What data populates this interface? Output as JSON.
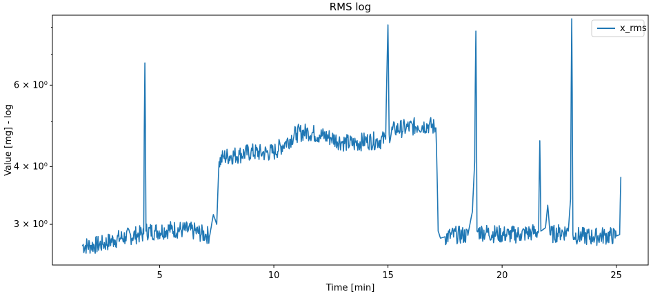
{
  "chart_data": {
    "type": "line",
    "title": "RMS log",
    "xlabel": "Time [min]",
    "ylabel": "Value [mg] - log",
    "yscale": "log",
    "xlim": [
      0.3,
      26.4
    ],
    "ylim": [
      2.45,
      8.5
    ],
    "x_ticks": [
      5,
      10,
      15,
      20,
      25
    ],
    "x_tick_labels": [
      "5",
      "10",
      "15",
      "20",
      "25"
    ],
    "y_ticks": [
      3,
      4,
      6
    ],
    "y_tick_labels": [
      "3 × 10⁰",
      "4 × 10⁰",
      "6 × 10⁰"
    ],
    "grid": false,
    "legend": "top-right",
    "series": [
      {
        "name": "x_rms",
        "color": "#1f77b4",
        "x": [
          1.6,
          2.0,
          2.5,
          3.0,
          3.5,
          4.0,
          4.3,
          4.35,
          4.4,
          4.8,
          5.5,
          6.0,
          6.5,
          7.0,
          7.2,
          7.35,
          7.5,
          7.6,
          7.8,
          8.5,
          9.0,
          9.5,
          10.0,
          10.5,
          11.0,
          11.5,
          12.0,
          12.5,
          13.0,
          13.5,
          14.0,
          14.5,
          14.9,
          15.0,
          15.05,
          15.3,
          15.8,
          16.3,
          16.8,
          17.1,
          17.2,
          17.3,
          17.5,
          18.0,
          18.5,
          18.7,
          18.8,
          18.85,
          18.9,
          19.3,
          19.8,
          20.3,
          20.8,
          21.3,
          21.6,
          21.65,
          21.7,
          21.9,
          22.0,
          22.1,
          22.5,
          22.9,
          23.0,
          23.05,
          23.1,
          23.5,
          24.0,
          24.5,
          25.0,
          25.15,
          25.2
        ],
        "y": [
          2.7,
          2.7,
          2.72,
          2.78,
          2.82,
          2.85,
          2.86,
          6.7,
          2.9,
          2.9,
          2.93,
          2.92,
          2.9,
          2.85,
          2.85,
          3.15,
          3.0,
          4.1,
          4.2,
          4.25,
          4.3,
          4.28,
          4.3,
          4.5,
          4.72,
          4.76,
          4.68,
          4.62,
          4.52,
          4.48,
          4.55,
          4.55,
          4.58,
          8.1,
          4.7,
          4.82,
          4.85,
          4.9,
          4.92,
          4.85,
          2.9,
          2.8,
          2.82,
          2.85,
          2.84,
          3.2,
          4.1,
          7.85,
          2.9,
          2.88,
          2.86,
          2.85,
          2.86,
          2.88,
          2.9,
          4.55,
          2.9,
          2.95,
          3.3,
          2.85,
          2.88,
          2.9,
          3.4,
          8.35,
          2.85,
          2.83,
          2.82,
          2.84,
          2.83,
          2.85,
          3.8
        ]
      }
    ]
  }
}
